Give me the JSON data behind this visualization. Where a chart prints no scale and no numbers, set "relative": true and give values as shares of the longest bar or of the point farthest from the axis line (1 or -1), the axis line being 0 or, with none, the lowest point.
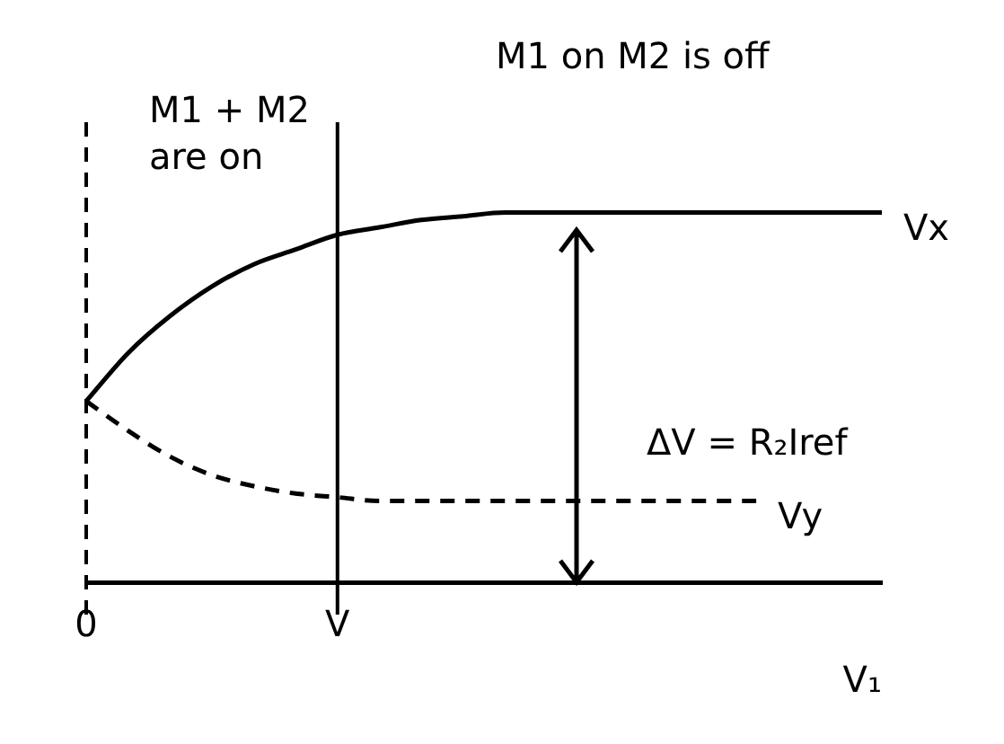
{
  "chart_data": {
    "type": "line",
    "relative": true,
    "xlabel": "V₁",
    "categories": [
      "0",
      null,
      null,
      null,
      null,
      null,
      "V",
      null,
      null,
      null,
      null,
      null,
      null,
      null,
      null,
      null,
      null,
      null,
      null,
      null
    ],
    "series": [
      {
        "name": "Vx",
        "color": "#000000",
        "line_style": "solid",
        "values": [
          0.49,
          0.62,
          0.72,
          0.8,
          0.86,
          0.9,
          0.94,
          0.96,
          0.98,
          0.99,
          1,
          1,
          1,
          1,
          1,
          1,
          1,
          1,
          1,
          1
        ]
      },
      {
        "name": "Vy",
        "color": "#000000",
        "line_style": "dashed",
        "values": [
          0.49,
          0.41,
          0.34,
          0.29,
          0.26,
          0.24,
          0.23,
          0.22,
          0.22,
          0.22,
          0.22,
          0.22,
          0.22,
          0.22,
          0.22,
          0.22,
          0.22,
          null,
          null,
          null
        ]
      }
    ],
    "ref_lines": [
      {
        "axis": "x",
        "value": "0",
        "line_style": "dashed",
        "color": "#000000"
      },
      {
        "axis": "x",
        "value": "V",
        "line_style": "solid",
        "color": "#000000"
      }
    ],
    "annotations": [
      "M1 + M2 are on",
      "M1 on M2 is off",
      "ΔV = R₂Iref"
    ],
    "grid": false,
    "legend": false,
    "marker": "none"
  }
}
